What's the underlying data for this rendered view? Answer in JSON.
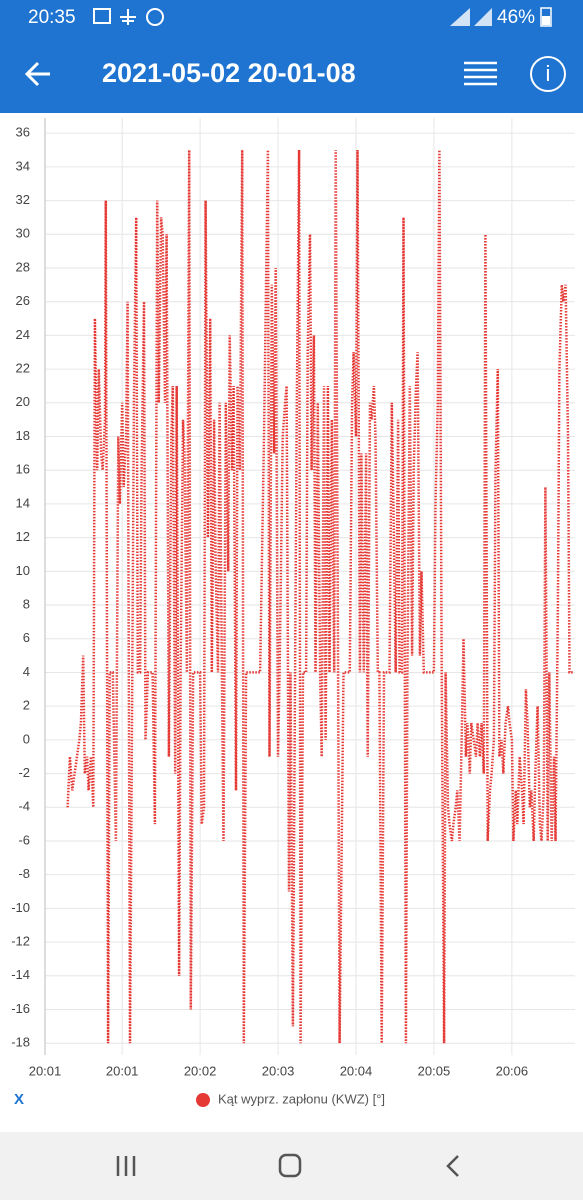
{
  "status_bar": {
    "time": "20:35",
    "battery": "46%"
  },
  "header": {
    "title": "2021-05-02 20-01-08"
  },
  "footer": {
    "x_button": "X"
  },
  "chart_data": {
    "type": "line",
    "grid": true,
    "xlim": [
      0,
      6.8
    ],
    "ylim": [
      -18.7,
      36.9
    ],
    "xticks": [
      {
        "value": 0,
        "label": "20:01"
      },
      {
        "value": 0.99,
        "label": "20:01"
      },
      {
        "value": 1.99,
        "label": "20:02"
      },
      {
        "value": 2.99,
        "label": "20:03"
      },
      {
        "value": 3.99,
        "label": "20:04"
      },
      {
        "value": 4.99,
        "label": "20:05"
      },
      {
        "value": 5.99,
        "label": "20:06"
      }
    ],
    "yticks": [
      -18,
      -16,
      -14,
      -12,
      -10,
      -8,
      -6,
      -4,
      -2,
      0,
      2,
      4,
      6,
      8,
      10,
      12,
      14,
      16,
      18,
      20,
      22,
      24,
      26,
      28,
      30,
      32,
      34,
      36
    ],
    "x": [
      0.29,
      0.32,
      0.35,
      0.38,
      0.41,
      0.44,
      0.46,
      0.49,
      0.51,
      0.54,
      0.56,
      0.59,
      0.62,
      0.64,
      0.67,
      0.69,
      0.72,
      0.74,
      0.77,
      0.78,
      0.81,
      0.83,
      0.87,
      0.91,
      0.94,
      0.96,
      0.99,
      1.01,
      1.04,
      1.06,
      1.09,
      1.12,
      1.14,
      1.17,
      1.19,
      1.22,
      1.24,
      1.27,
      1.29,
      1.32,
      1.36,
      1.38,
      1.41,
      1.44,
      1.46,
      1.49,
      1.51,
      1.54,
      1.56,
      1.59,
      1.62,
      1.64,
      1.67,
      1.69,
      1.72,
      1.74,
      1.77,
      1.79,
      1.82,
      1.85,
      1.87,
      1.9,
      1.95,
      1.99,
      2.01,
      2.04,
      2.06,
      2.09,
      2.12,
      2.14,
      2.17,
      2.19,
      2.22,
      2.24,
      2.27,
      2.29,
      2.32,
      2.35,
      2.37,
      2.4,
      2.42,
      2.45,
      2.47,
      2.5,
      2.53,
      2.55,
      2.58,
      2.63,
      2.69,
      2.76,
      2.81,
      2.83,
      2.86,
      2.88,
      2.91,
      2.94,
      2.96,
      2.99,
      3.01,
      3.05,
      3.08,
      3.1,
      3.13,
      3.15,
      3.18,
      3.21,
      3.23,
      3.26,
      3.28,
      3.31,
      3.35,
      3.37,
      3.4,
      3.42,
      3.45,
      3.47,
      3.5,
      3.53,
      3.55,
      3.58,
      3.6,
      3.63,
      3.65,
      3.68,
      3.71,
      3.73,
      3.76,
      3.78,
      3.83,
      3.91,
      3.94,
      3.96,
      3.99,
      4.01,
      4.04,
      4.06,
      4.09,
      4.12,
      4.14,
      4.17,
      4.19,
      4.22,
      4.24,
      4.27,
      4.29,
      4.32,
      4.35,
      4.42,
      4.45,
      4.47,
      4.5,
      4.53,
      4.55,
      4.58,
      4.6,
      4.63,
      4.65,
      4.68,
      4.71,
      4.73,
      4.76,
      4.78,
      4.81,
      4.83,
      4.86,
      4.99,
      5.01,
      5.04,
      5.06,
      5.09,
      5.12,
      5.14,
      5.17,
      5.19,
      5.22,
      5.24,
      5.27,
      5.29,
      5.32,
      5.35,
      5.37,
      5.4,
      5.42,
      5.45,
      5.47,
      5.5,
      5.53,
      5.55,
      5.58,
      5.6,
      5.63,
      5.65,
      5.68,
      5.71,
      5.73,
      5.76,
      5.78,
      5.81,
      5.83,
      5.86,
      5.88,
      5.91,
      5.94,
      5.96,
      5.99,
      6.01,
      6.04,
      6.06,
      6.09,
      6.12,
      6.14,
      6.17,
      6.19,
      6.22,
      6.24,
      6.27,
      6.29,
      6.32,
      6.35,
      6.37,
      6.4,
      6.42,
      6.45,
      6.47,
      6.5,
      6.53,
      6.55,
      6.58,
      6.6,
      6.63,
      6.65,
      6.68,
      6.71,
      6.73,
      6.78
    ],
    "series": [
      {
        "name": "Kąt wyprz. zapłonu (KWZ) [°]",
        "color": "#e53935",
        "values": [
          -4,
          -1,
          -3,
          -2,
          -1,
          0,
          1,
          5,
          -2,
          -1,
          -3,
          -1,
          -4,
          25,
          16,
          22,
          17,
          16,
          19,
          32,
          -18,
          4,
          4,
          -6,
          18,
          14,
          20,
          15,
          18,
          26,
          -18,
          4,
          20,
          31,
          4,
          4,
          16,
          26,
          0,
          4,
          4,
          4,
          -5,
          32,
          20,
          31,
          30,
          20,
          30,
          -1,
          18,
          21,
          -2,
          21,
          -14,
          4,
          19,
          17,
          4,
          35,
          -16,
          4,
          4,
          4,
          -5,
          -4,
          32,
          12,
          25,
          4,
          19,
          10,
          4,
          20,
          4,
          -6,
          20,
          10,
          24,
          16,
          21,
          -3,
          21,
          16,
          35,
          -18,
          4,
          4,
          4,
          4,
          18,
          25,
          35,
          -1,
          27,
          17,
          28,
          -1,
          4,
          18,
          20,
          21,
          -9,
          4,
          -17,
          5,
          20,
          35,
          -18,
          4,
          4,
          23,
          30,
          16,
          24,
          4,
          20,
          4,
          -1,
          21,
          0,
          21,
          4,
          19,
          4,
          35,
          4,
          -18,
          4,
          4,
          20,
          23,
          18,
          35,
          4,
          17,
          4,
          17,
          -1,
          20,
          19,
          21,
          18,
          4,
          4,
          -18,
          4,
          4,
          20,
          14,
          4,
          19,
          4,
          4,
          31,
          -18,
          4,
          21,
          5,
          16,
          21,
          23,
          5,
          10,
          4,
          4,
          14,
          20,
          35,
          4,
          -18,
          4,
          -4,
          -5,
          -6,
          -5,
          -4,
          -3,
          -6,
          1,
          6,
          -1,
          1,
          -2,
          1,
          0,
          -1,
          1,
          -1,
          1,
          -2,
          30,
          -6,
          -3,
          -2,
          0,
          16,
          22,
          -1,
          0,
          -2,
          1,
          2,
          1,
          0,
          -6,
          -3,
          -5,
          -1,
          -3,
          -5,
          3,
          1,
          -4,
          -3,
          -6,
          -2,
          2,
          -5,
          -6,
          -3,
          15,
          -6,
          4,
          -6,
          -1,
          -6,
          8,
          22,
          27,
          26,
          27,
          18,
          4,
          4
        ]
      }
    ]
  }
}
